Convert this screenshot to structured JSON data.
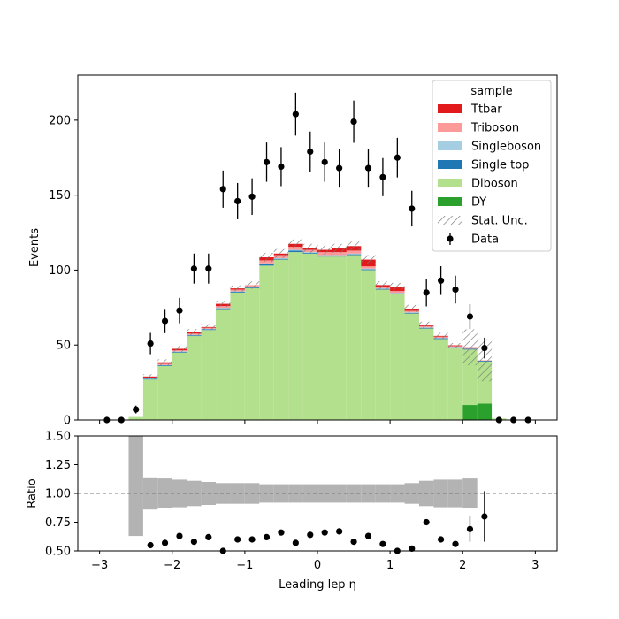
{
  "chart_data": [
    {
      "type": "bar",
      "panel": "main",
      "ylabel": "Events",
      "ylim": [
        0,
        230
      ],
      "xlim": [
        -3.3,
        3.3
      ],
      "yticks": [
        0,
        50,
        100,
        150,
        200
      ],
      "bin_edges": [
        -3.0,
        -2.8,
        -2.6,
        -2.4,
        -2.2,
        -2.0,
        -1.8,
        -1.6,
        -1.4,
        -1.2,
        -1.0,
        -0.8,
        -0.6,
        -0.4,
        -0.2,
        0.0,
        0.2,
        0.4,
        0.6,
        0.8,
        1.0,
        1.2,
        1.4,
        1.6,
        1.8,
        2.0,
        2.2,
        2.4,
        2.6,
        2.8,
        3.0
      ],
      "legend_title": "sample",
      "legend_placement": "top-right",
      "series": [
        {
          "name": "DY",
          "color": "#2ca02c",
          "values": [
            0,
            0,
            0,
            0,
            0,
            0,
            0,
            0,
            0,
            0,
            0,
            0,
            0,
            0,
            0,
            0,
            0,
            0,
            0,
            0,
            0,
            0,
            0,
            0,
            0,
            10,
            11,
            0,
            0,
            0
          ]
        },
        {
          "name": "Diboson",
          "color": "#b3e08c",
          "values": [
            0,
            0,
            2,
            27,
            36,
            45,
            56,
            60,
            74,
            85,
            88,
            103,
            107,
            112,
            111,
            109,
            109,
            110,
            100,
            87,
            84,
            71,
            61,
            54,
            48,
            37,
            28,
            1,
            0,
            0
          ]
        },
        {
          "name": "Single top",
          "color": "#1f77b4",
          "values": [
            0,
            0,
            0,
            0.5,
            0.5,
            0.5,
            0.5,
            0.5,
            0.5,
            0.5,
            0.5,
            1,
            0.5,
            1,
            0.5,
            0.5,
            0.5,
            0.5,
            0.5,
            0.5,
            0.5,
            0.5,
            0.5,
            0.5,
            0.5,
            0.5,
            0.5,
            0,
            0,
            0
          ]
        },
        {
          "name": "Singleboson",
          "color": "#a6cee3",
          "values": [
            0,
            0,
            0,
            0.2,
            0.2,
            0.3,
            0.3,
            0.3,
            0.3,
            0.3,
            0.3,
            0.5,
            0.5,
            0.5,
            0.5,
            0.5,
            0.5,
            0.5,
            0.5,
            0.3,
            0.3,
            0.3,
            0.3,
            0.3,
            0.3,
            0,
            0,
            0,
            0,
            0
          ]
        },
        {
          "name": "Triboson",
          "color": "#fb9a99",
          "values": [
            0,
            0,
            0,
            0.5,
            0.8,
            0.7,
            0.8,
            0.7,
            1.2,
            1.2,
            1.2,
            2,
            2,
            2,
            1.5,
            2,
            2,
            2,
            1.5,
            1.2,
            1.2,
            1,
            0.8,
            0.8,
            0.5,
            0.5,
            0.3,
            0,
            0,
            0
          ]
        },
        {
          "name": "Ttbar",
          "color": "#e31a1c",
          "values": [
            0,
            0,
            0,
            0.8,
            1,
            1,
            1,
            0.5,
            1.5,
            0.8,
            0,
            2,
            1,
            2,
            1,
            1.5,
            2.5,
            3,
            4.5,
            1,
            3,
            1.5,
            1,
            0.5,
            0.5,
            0.5,
            0,
            0,
            0,
            0
          ]
        }
      ],
      "stat_unc": {
        "name": "Stat. Unc.",
        "half_widths": [
          0,
          0,
          0,
          1.5,
          2,
          2,
          2,
          2,
          2,
          2,
          2.5,
          3,
          3,
          3,
          3,
          3,
          3,
          3,
          3,
          2.5,
          2.5,
          2.5,
          2,
          2,
          1.5,
          12,
          14,
          0,
          0,
          0
        ]
      },
      "data_points": {
        "name": "Data",
        "x": [
          -2.9,
          -2.7,
          -2.5,
          -2.3,
          -2.1,
          -1.9,
          -1.7,
          -1.5,
          -1.3,
          -1.1,
          -0.9,
          -0.7,
          -0.5,
          -0.3,
          -0.1,
          0.1,
          0.3,
          0.5,
          0.7,
          0.9,
          1.1,
          1.3,
          1.5,
          1.7,
          1.9,
          2.1,
          2.3,
          2.5,
          2.7,
          2.9
        ],
        "y": [
          0,
          0,
          7,
          51,
          66,
          73,
          101,
          101,
          154,
          146,
          149,
          172,
          169,
          204,
          179,
          172,
          168,
          199,
          168,
          162,
          175,
          141,
          85,
          93,
          87,
          69,
          48,
          0,
          0,
          0
        ],
        "yerr": [
          0,
          0,
          2.6,
          7.1,
          8.1,
          8.5,
          10,
          10,
          12.4,
          12.1,
          12.2,
          13.1,
          13,
          14.3,
          13.4,
          13.1,
          13,
          14.1,
          13,
          12.7,
          13.2,
          11.9,
          9.2,
          9.6,
          9.3,
          8.3,
          6.9,
          0,
          0,
          0
        ]
      },
      "legend_entries": [
        "Ttbar",
        "Triboson",
        "Singleboson",
        "Single top",
        "Diboson",
        "DY",
        "Stat. Unc.",
        "Data"
      ]
    },
    {
      "type": "scatter",
      "panel": "ratio",
      "xlabel": "Leading lep η",
      "ylabel": "Ratio",
      "ylim": [
        0.5,
        1.5
      ],
      "xlim": [
        -3.3,
        3.3
      ],
      "xticks": [
        -3,
        -2,
        -1,
        0,
        1,
        2,
        3
      ],
      "yticks": [
        0.5,
        0.75,
        1.0,
        1.25,
        1.5
      ],
      "ytick_labels": [
        "0.50",
        "0.75",
        "1.00",
        "1.25",
        "1.50"
      ],
      "reference_line": 1.0,
      "unc_band": {
        "bins_lo": [
          -2.6,
          -2.4,
          -2.2,
          -2.0,
          -1.8,
          -1.6,
          -1.4,
          -1.2,
          -1.0,
          -0.8,
          -0.6,
          -0.4,
          -0.2,
          0.0,
          0.2,
          0.4,
          0.6,
          0.8,
          1.0,
          1.2,
          1.4,
          1.6,
          1.8,
          2.0
        ],
        "lo": [
          0.63,
          0.86,
          0.87,
          0.88,
          0.89,
          0.9,
          0.91,
          0.91,
          0.91,
          0.92,
          0.92,
          0.92,
          0.92,
          0.92,
          0.92,
          0.92,
          0.92,
          0.92,
          0.92,
          0.91,
          0.89,
          0.88,
          0.88,
          0.87
        ],
        "hi": [
          1.5,
          1.14,
          1.13,
          1.12,
          1.11,
          1.1,
          1.09,
          1.09,
          1.09,
          1.08,
          1.08,
          1.08,
          1.08,
          1.08,
          1.08,
          1.08,
          1.08,
          1.08,
          1.08,
          1.09,
          1.11,
          1.12,
          1.12,
          1.13
        ]
      },
      "points": {
        "x": [
          -2.3,
          -2.1,
          -1.9,
          -1.7,
          -1.5,
          -1.3,
          -1.1,
          -0.9,
          -0.7,
          -0.5,
          -0.3,
          -0.1,
          0.1,
          0.3,
          0.5,
          0.7,
          0.9,
          1.1,
          1.3,
          1.5,
          1.7,
          1.9,
          2.1,
          2.3
        ],
        "y": [
          0.55,
          0.57,
          0.63,
          0.58,
          0.62,
          0.5,
          0.6,
          0.6,
          0.62,
          0.66,
          0.57,
          0.64,
          0.66,
          0.67,
          0.58,
          0.63,
          0.56,
          0.5,
          0.52,
          0.75,
          0.6,
          0.56,
          0.69,
          0.8
        ],
        "yerr": [
          0,
          0,
          0,
          0,
          0,
          0,
          0,
          0,
          0,
          0,
          0,
          0,
          0,
          0,
          0,
          0,
          0,
          0,
          0,
          0,
          0,
          0,
          0.11,
          0.22
        ]
      }
    }
  ]
}
